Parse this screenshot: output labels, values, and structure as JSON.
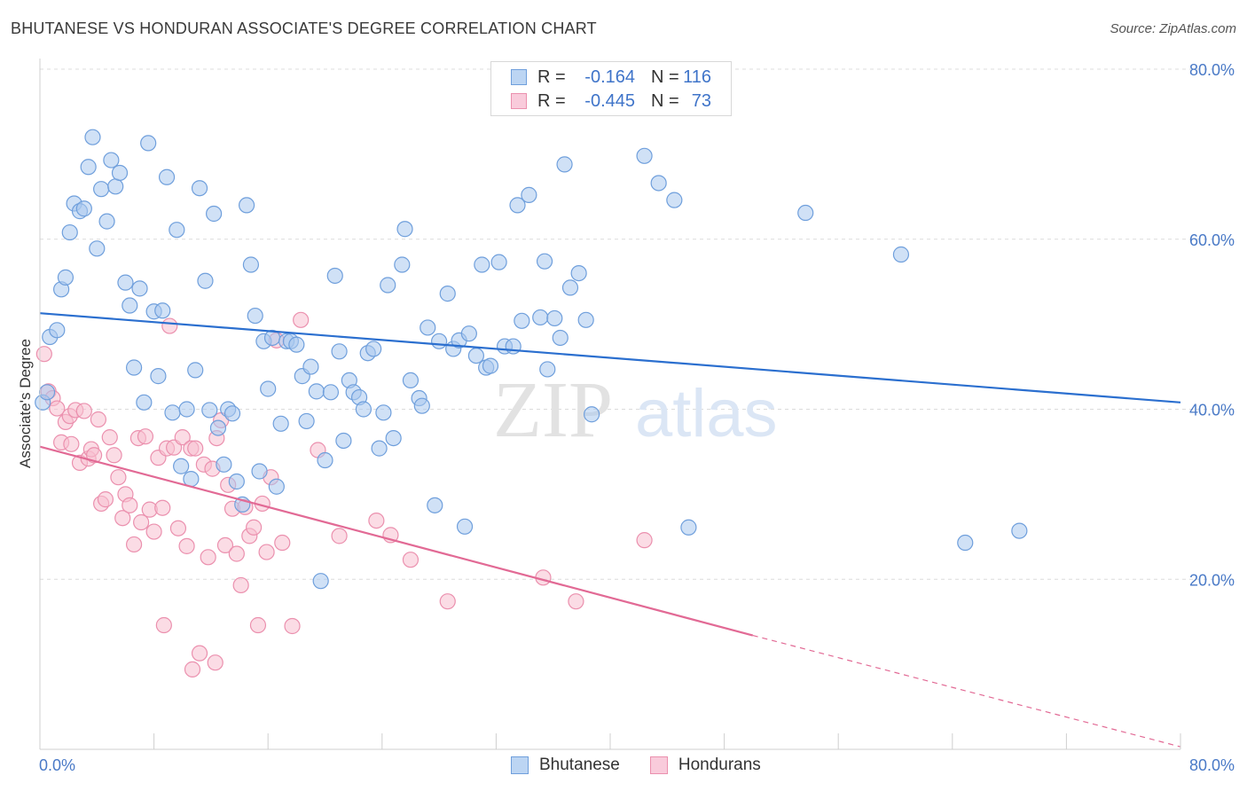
{
  "title": "BHUTANESE VS HONDURAN ASSOCIATE'S DEGREE CORRELATION CHART",
  "source": "Source: ZipAtlas.com",
  "watermark": "ZIPatlas",
  "colors": {
    "blue_fill": "#a9c8ef",
    "blue_stroke": "#6f9fdc",
    "blue_line": "#2b6fcf",
    "pink_fill": "#f7bfd0",
    "pink_stroke": "#eb90ae",
    "pink_line": "#e26a95",
    "tick_text": "#4a7ac7"
  },
  "legend": {
    "rows": [
      {
        "r_label": "R =",
        "r_value": "-0.164",
        "n_label": "N =",
        "n_value": "116"
      },
      {
        "r_label": "R =",
        "r_value": "-0.445",
        "n_label": "N =",
        "n_value": "73"
      }
    ]
  },
  "bottom_legend": [
    "Bhutanese",
    "Hondurans"
  ],
  "chart_data": {
    "type": "scatter",
    "xlabel": "",
    "ylabel": "Associate's Degree",
    "xlim": [
      0,
      80
    ],
    "ylim": [
      0,
      80
    ],
    "x_tick_labels": [
      "0.0%",
      "80.0%"
    ],
    "y_tick_labels": [
      "20.0%",
      "40.0%",
      "60.0%",
      "80.0%"
    ],
    "y_ticks": [
      20,
      40,
      60,
      80
    ],
    "grid": "horizontal dashed",
    "legend_position": "top-center",
    "series": [
      {
        "name": "Bhutanese",
        "r": -0.164,
        "n": 116,
        "trend": {
          "x0": 0,
          "y0": 51.3,
          "x1": 80,
          "y1": 40.8
        },
        "points": [
          [
            0.2,
            40.8
          ],
          [
            0.5,
            42
          ],
          [
            0.7,
            48.5
          ],
          [
            1.2,
            49.3
          ],
          [
            1.5,
            54.1
          ],
          [
            1.8,
            55.5
          ],
          [
            2.1,
            60.8
          ],
          [
            2.4,
            64.2
          ],
          [
            2.8,
            63.3
          ],
          [
            3.1,
            63.6
          ],
          [
            3.4,
            68.5
          ],
          [
            3.7,
            72
          ],
          [
            4.0,
            58.9
          ],
          [
            4.3,
            65.9
          ],
          [
            4.7,
            62.1
          ],
          [
            5.0,
            69.3
          ],
          [
            5.3,
            66.2
          ],
          [
            5.6,
            67.8
          ],
          [
            6.0,
            54.9
          ],
          [
            6.3,
            52.2
          ],
          [
            6.6,
            44.9
          ],
          [
            7.0,
            54.2
          ],
          [
            7.3,
            40.8
          ],
          [
            7.6,
            71.3
          ],
          [
            8.0,
            51.5
          ],
          [
            8.3,
            43.9
          ],
          [
            8.6,
            51.6
          ],
          [
            8.9,
            67.3
          ],
          [
            9.3,
            39.6
          ],
          [
            9.6,
            61.1
          ],
          [
            9.9,
            33.3
          ],
          [
            10.3,
            40
          ],
          [
            10.6,
            31.8
          ],
          [
            10.9,
            44.6
          ],
          [
            11.2,
            66
          ],
          [
            11.6,
            55.1
          ],
          [
            11.9,
            39.9
          ],
          [
            12.2,
            63
          ],
          [
            12.5,
            37.8
          ],
          [
            12.9,
            33.5
          ],
          [
            13.2,
            40
          ],
          [
            13.5,
            39.5
          ],
          [
            13.8,
            31.5
          ],
          [
            14.2,
            28.8
          ],
          [
            14.5,
            64
          ],
          [
            14.8,
            57
          ],
          [
            15.1,
            51
          ],
          [
            15.4,
            32.7
          ],
          [
            15.7,
            48
          ],
          [
            16.0,
            42.4
          ],
          [
            16.3,
            48.4
          ],
          [
            16.6,
            30.9
          ],
          [
            16.9,
            38.3
          ],
          [
            17.3,
            48
          ],
          [
            17.6,
            48
          ],
          [
            18.0,
            47.6
          ],
          [
            18.4,
            43.9
          ],
          [
            18.7,
            38.6
          ],
          [
            19.0,
            45
          ],
          [
            19.4,
            42.1
          ],
          [
            19.7,
            19.8
          ],
          [
            20.0,
            34
          ],
          [
            20.4,
            42
          ],
          [
            20.7,
            55.7
          ],
          [
            21.0,
            46.8
          ],
          [
            21.3,
            36.3
          ],
          [
            21.7,
            43.4
          ],
          [
            22.0,
            42
          ],
          [
            22.4,
            41.4
          ],
          [
            22.7,
            40
          ],
          [
            23.0,
            46.6
          ],
          [
            23.4,
            47.1
          ],
          [
            23.8,
            35.4
          ],
          [
            24.1,
            39.6
          ],
          [
            24.4,
            54.6
          ],
          [
            24.8,
            36.6
          ],
          [
            25.4,
            57
          ],
          [
            25.6,
            61.2
          ],
          [
            26.0,
            43.4
          ],
          [
            26.6,
            41.3
          ],
          [
            26.8,
            40.4
          ],
          [
            27.2,
            49.6
          ],
          [
            27.7,
            28.7
          ],
          [
            28.0,
            48
          ],
          [
            28.6,
            53.6
          ],
          [
            29.0,
            47.1
          ],
          [
            29.4,
            48.1
          ],
          [
            29.8,
            26.2
          ],
          [
            30.1,
            48.9
          ],
          [
            30.6,
            46.3
          ],
          [
            31.0,
            57
          ],
          [
            31.3,
            44.9
          ],
          [
            31.6,
            45.1
          ],
          [
            32.2,
            57.3
          ],
          [
            32.6,
            47.4
          ],
          [
            33.2,
            47.4
          ],
          [
            33.5,
            64
          ],
          [
            33.8,
            50.4
          ],
          [
            34.3,
            65.2
          ],
          [
            35.1,
            50.8
          ],
          [
            35.4,
            57.4
          ],
          [
            35.6,
            44.7
          ],
          [
            36.1,
            50.7
          ],
          [
            36.5,
            48.4
          ],
          [
            36.8,
            68.8
          ],
          [
            37.2,
            54.3
          ],
          [
            37.8,
            56
          ],
          [
            38.3,
            50.5
          ],
          [
            38.7,
            39.4
          ],
          [
            42.4,
            69.8
          ],
          [
            43.4,
            66.6
          ],
          [
            44.5,
            64.6
          ],
          [
            45.5,
            26.1
          ],
          [
            53.7,
            63.1
          ],
          [
            60.4,
            58.2
          ],
          [
            64.9,
            24.3
          ],
          [
            68.7,
            25.7
          ]
        ]
      },
      {
        "name": "Hondurans",
        "r": -0.445,
        "n": 73,
        "trend": {
          "x0": 0,
          "y0": 35.6,
          "x1": 50,
          "y1": 13.4,
          "dash_to_x": 80,
          "dash_to_y": 0.3
        },
        "points": [
          [
            0.3,
            46.5
          ],
          [
            0.6,
            42.1
          ],
          [
            0.9,
            41.3
          ],
          [
            1.2,
            40.1
          ],
          [
            1.5,
            36.1
          ],
          [
            1.8,
            38.5
          ],
          [
            2.1,
            39.2
          ],
          [
            2.2,
            35.9
          ],
          [
            2.5,
            39.9
          ],
          [
            2.8,
            33.7
          ],
          [
            3.1,
            39.8
          ],
          [
            3.4,
            34.2
          ],
          [
            3.6,
            35.3
          ],
          [
            3.8,
            34.6
          ],
          [
            4.1,
            38.8
          ],
          [
            4.3,
            28.9
          ],
          [
            4.6,
            29.4
          ],
          [
            4.9,
            36.7
          ],
          [
            5.2,
            34.6
          ],
          [
            5.5,
            32
          ],
          [
            5.8,
            27.2
          ],
          [
            6.0,
            30
          ],
          [
            6.3,
            28.7
          ],
          [
            6.6,
            24.1
          ],
          [
            6.9,
            36.6
          ],
          [
            7.1,
            26.7
          ],
          [
            7.4,
            36.8
          ],
          [
            7.7,
            28.2
          ],
          [
            8.0,
            25.6
          ],
          [
            8.3,
            34.3
          ],
          [
            8.6,
            28.4
          ],
          [
            8.9,
            35.4
          ],
          [
            9.1,
            49.8
          ],
          [
            9.4,
            35.5
          ],
          [
            9.7,
            26
          ],
          [
            10.0,
            36.7
          ],
          [
            10.3,
            23.9
          ],
          [
            10.6,
            35.4
          ],
          [
            10.9,
            35.4
          ],
          [
            11.2,
            11.3
          ],
          [
            11.5,
            33.5
          ],
          [
            11.8,
            22.6
          ],
          [
            12.1,
            33
          ],
          [
            12.4,
            36.6
          ],
          [
            12.7,
            38.7
          ],
          [
            13.0,
            24
          ],
          [
            13.2,
            31.1
          ],
          [
            13.5,
            28.3
          ],
          [
            13.8,
            23
          ],
          [
            14.1,
            19.3
          ],
          [
            14.4,
            28.5
          ],
          [
            14.7,
            25.1
          ],
          [
            15.0,
            26.1
          ],
          [
            15.3,
            14.6
          ],
          [
            15.6,
            28.9
          ],
          [
            15.9,
            23.2
          ],
          [
            16.2,
            32
          ],
          [
            16.6,
            48.1
          ],
          [
            17.0,
            24.3
          ],
          [
            17.7,
            14.5
          ],
          [
            18.3,
            50.5
          ],
          [
            19.5,
            35.2
          ],
          [
            21.0,
            25.1
          ],
          [
            23.6,
            26.9
          ],
          [
            24.6,
            25.2
          ],
          [
            26.0,
            22.3
          ],
          [
            28.6,
            17.4
          ],
          [
            35.3,
            20.2
          ],
          [
            37.6,
            17.4
          ],
          [
            42.4,
            24.6
          ],
          [
            12.3,
            10.2
          ],
          [
            10.7,
            9.4
          ],
          [
            8.7,
            14.6
          ]
        ]
      }
    ]
  }
}
